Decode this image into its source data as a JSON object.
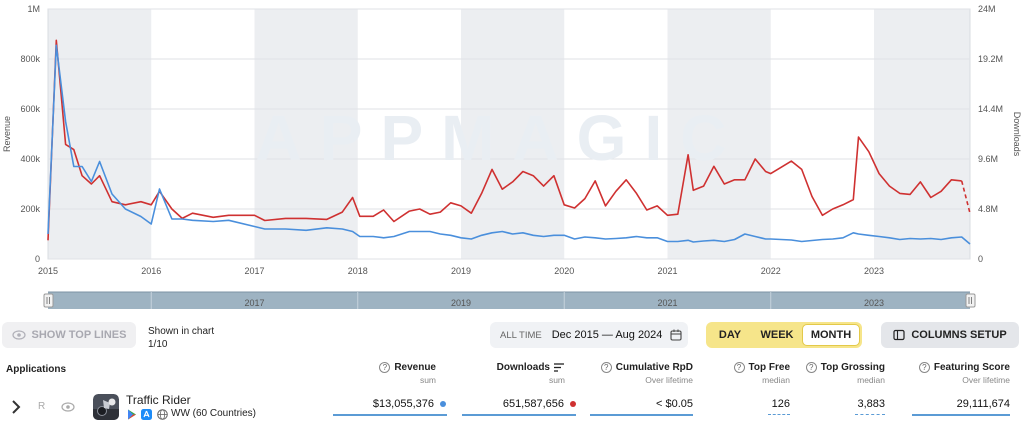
{
  "chart_data": {
    "type": "line",
    "left_axis": {
      "label": "Revenue",
      "ticks": [
        "0",
        "200k",
        "400k",
        "600k",
        "800k",
        "1M"
      ],
      "min": 0,
      "max": 1000000
    },
    "right_axis": {
      "label": "Downloads",
      "ticks": [
        "0",
        "4.8M",
        "9.6M",
        "14.4M",
        "19.2M",
        "24M"
      ],
      "min": 0,
      "max": 24000000
    },
    "x_ticks": [
      "2015",
      "2016",
      "2017",
      "2018",
      "2019",
      "2020",
      "2021",
      "2022",
      "2023"
    ],
    "x_range": [
      "2015-01",
      "2023-09"
    ],
    "watermark": "APPMAGIC",
    "grid": true,
    "series": [
      {
        "color": "#cf3131",
        "axis": "right",
        "values": [
          [
            2015.0,
            1.8
          ],
          [
            2015.08,
            21
          ],
          [
            2015.17,
            11
          ],
          [
            2015.25,
            10.5
          ],
          [
            2015.33,
            8
          ],
          [
            2015.42,
            7.2
          ],
          [
            2015.5,
            8
          ],
          [
            2015.62,
            5.5
          ],
          [
            2015.75,
            5.2
          ],
          [
            2015.9,
            5.5
          ],
          [
            2016.0,
            5.2
          ],
          [
            2016.08,
            6.5
          ],
          [
            2016.2,
            4.8
          ],
          [
            2016.3,
            3.9
          ],
          [
            2016.4,
            4.4
          ],
          [
            2016.6,
            4.0
          ],
          [
            2016.75,
            4.2
          ],
          [
            2017.0,
            4.2
          ],
          [
            2017.1,
            3.7
          ],
          [
            2017.3,
            3.9
          ],
          [
            2017.5,
            3.9
          ],
          [
            2017.7,
            3.8
          ],
          [
            2017.85,
            4.5
          ],
          [
            2017.95,
            5.9
          ],
          [
            2018.02,
            4.1
          ],
          [
            2018.15,
            4.1
          ],
          [
            2018.25,
            4.7
          ],
          [
            2018.35,
            3.6
          ],
          [
            2018.5,
            4.6
          ],
          [
            2018.6,
            4.8
          ],
          [
            2018.7,
            4.3
          ],
          [
            2018.8,
            4.5
          ],
          [
            2018.9,
            5.4
          ],
          [
            2019.0,
            5.1
          ],
          [
            2019.1,
            4.4
          ],
          [
            2019.2,
            6.3
          ],
          [
            2019.3,
            8.6
          ],
          [
            2019.4,
            6.7
          ],
          [
            2019.5,
            7.4
          ],
          [
            2019.6,
            8.4
          ],
          [
            2019.7,
            8.0
          ],
          [
            2019.8,
            7.0
          ],
          [
            2019.9,
            8.0
          ],
          [
            2020.0,
            5.2
          ],
          [
            2020.1,
            4.9
          ],
          [
            2020.2,
            5.8
          ],
          [
            2020.3,
            7.5
          ],
          [
            2020.4,
            5.1
          ],
          [
            2020.5,
            6.5
          ],
          [
            2020.6,
            7.6
          ],
          [
            2020.7,
            6.3
          ],
          [
            2020.8,
            4.7
          ],
          [
            2020.9,
            5.1
          ],
          [
            2021.0,
            4.2
          ],
          [
            2021.1,
            4.3
          ],
          [
            2021.2,
            10.0
          ],
          [
            2021.25,
            6.6
          ],
          [
            2021.35,
            7.0
          ],
          [
            2021.45,
            8.9
          ],
          [
            2021.55,
            7.2
          ],
          [
            2021.65,
            7.6
          ],
          [
            2021.75,
            7.6
          ],
          [
            2021.85,
            9.6
          ],
          [
            2021.95,
            8.4
          ],
          [
            2022.0,
            8.2
          ],
          [
            2022.1,
            8.8
          ],
          [
            2022.2,
            9.4
          ],
          [
            2022.3,
            8.6
          ],
          [
            2022.4,
            6.0
          ],
          [
            2022.5,
            4.2
          ],
          [
            2022.6,
            4.8
          ],
          [
            2022.7,
            5.2
          ],
          [
            2022.8,
            5.7
          ],
          [
            2022.85,
            11.7
          ],
          [
            2022.95,
            10.3
          ],
          [
            2023.05,
            8.2
          ],
          [
            2023.15,
            7.0
          ],
          [
            2023.25,
            6.3
          ],
          [
            2023.35,
            6.2
          ],
          [
            2023.45,
            7.4
          ],
          [
            2023.55,
            5.9
          ],
          [
            2023.65,
            6.5
          ],
          [
            2023.75,
            7.6
          ],
          [
            2023.85,
            7.5
          ]
        ],
        "dashed_tail": [
          [
            2023.85,
            7.5
          ],
          [
            2023.93,
            4.4
          ]
        ]
      },
      {
        "color": "#4a8fdc",
        "axis": "left",
        "values": [
          [
            2015.0,
            100000
          ],
          [
            2015.08,
            855000
          ],
          [
            2015.17,
            550000
          ],
          [
            2015.25,
            370000
          ],
          [
            2015.33,
            370000
          ],
          [
            2015.42,
            310000
          ],
          [
            2015.5,
            390000
          ],
          [
            2015.62,
            260000
          ],
          [
            2015.75,
            200000
          ],
          [
            2015.9,
            170000
          ],
          [
            2016.0,
            140000
          ],
          [
            2016.08,
            280000
          ],
          [
            2016.2,
            160000
          ],
          [
            2016.3,
            160000
          ],
          [
            2016.4,
            155000
          ],
          [
            2016.6,
            150000
          ],
          [
            2016.75,
            155000
          ],
          [
            2017.0,
            130000
          ],
          [
            2017.1,
            120000
          ],
          [
            2017.3,
            120000
          ],
          [
            2017.5,
            115000
          ],
          [
            2017.7,
            125000
          ],
          [
            2017.85,
            120000
          ],
          [
            2017.95,
            110000
          ],
          [
            2018.02,
            90000
          ],
          [
            2018.15,
            90000
          ],
          [
            2018.25,
            85000
          ],
          [
            2018.35,
            90000
          ],
          [
            2018.5,
            110000
          ],
          [
            2018.6,
            110000
          ],
          [
            2018.7,
            110000
          ],
          [
            2018.8,
            100000
          ],
          [
            2018.9,
            95000
          ],
          [
            2019.0,
            85000
          ],
          [
            2019.1,
            80000
          ],
          [
            2019.2,
            95000
          ],
          [
            2019.3,
            105000
          ],
          [
            2019.4,
            110000
          ],
          [
            2019.5,
            100000
          ],
          [
            2019.6,
            105000
          ],
          [
            2019.7,
            95000
          ],
          [
            2019.8,
            90000
          ],
          [
            2019.9,
            95000
          ],
          [
            2020.0,
            95000
          ],
          [
            2020.1,
            80000
          ],
          [
            2020.2,
            88000
          ],
          [
            2020.3,
            85000
          ],
          [
            2020.4,
            80000
          ],
          [
            2020.5,
            82000
          ],
          [
            2020.6,
            85000
          ],
          [
            2020.7,
            90000
          ],
          [
            2020.8,
            85000
          ],
          [
            2020.9,
            85000
          ],
          [
            2021.0,
            70000
          ],
          [
            2021.1,
            70000
          ],
          [
            2021.2,
            75000
          ],
          [
            2021.25,
            68000
          ],
          [
            2021.35,
            72000
          ],
          [
            2021.45,
            75000
          ],
          [
            2021.55,
            70000
          ],
          [
            2021.65,
            78000
          ],
          [
            2021.75,
            100000
          ],
          [
            2021.85,
            90000
          ],
          [
            2021.95,
            80000
          ],
          [
            2022.0,
            80000
          ],
          [
            2022.1,
            78000
          ],
          [
            2022.2,
            76000
          ],
          [
            2022.3,
            70000
          ],
          [
            2022.4,
            74000
          ],
          [
            2022.5,
            78000
          ],
          [
            2022.6,
            80000
          ],
          [
            2022.7,
            85000
          ],
          [
            2022.8,
            105000
          ],
          [
            2022.85,
            100000
          ],
          [
            2022.95,
            95000
          ],
          [
            2023.05,
            90000
          ],
          [
            2023.15,
            85000
          ],
          [
            2023.25,
            78000
          ],
          [
            2023.35,
            82000
          ],
          [
            2023.45,
            80000
          ],
          [
            2023.55,
            82000
          ],
          [
            2023.65,
            78000
          ],
          [
            2023.75,
            85000
          ],
          [
            2023.85,
            88000
          ],
          [
            2023.93,
            60000
          ]
        ]
      }
    ],
    "navigator": {
      "labels": [
        "2017",
        "2019",
        "2021",
        "2023"
      ]
    }
  },
  "toolbar": {
    "show_top_lines": "SHOW TOP LINES",
    "shown_in_chart_label": "Shown in chart",
    "shown_in_chart_value": "1/10",
    "all_time": "ALL TIME",
    "date_range": "Dec 2015 — Aug 2024",
    "granularity": [
      "DAY",
      "WEEK",
      "MONTH"
    ],
    "granularity_selected": "MONTH",
    "columns_setup": "COLUMNS SETUP"
  },
  "table": {
    "applications_header": "Applications",
    "columns": [
      {
        "title": "Revenue",
        "sub": "sum"
      },
      {
        "title": "Downloads",
        "sub": "sum"
      },
      {
        "title": "Cumulative RpD",
        "sub": "Over lifetime"
      },
      {
        "title": "Top Free",
        "sub": "median"
      },
      {
        "title": "Top Grossing",
        "sub": "median"
      },
      {
        "title": "Featuring Score",
        "sub": "Over lifetime"
      }
    ],
    "row": {
      "marker": "R",
      "app_name": "Traffic Rider",
      "region": "WW (60 Countries)",
      "revenue": "$13,055,376",
      "downloads": "651,587,656",
      "cumulative_rpd": "< $0.05",
      "top_free": "126",
      "top_grossing": "3,883",
      "featuring_score": "29,111,674",
      "revenue_dot_color": "#4a8fdc",
      "downloads_dot_color": "#cf3131"
    }
  }
}
